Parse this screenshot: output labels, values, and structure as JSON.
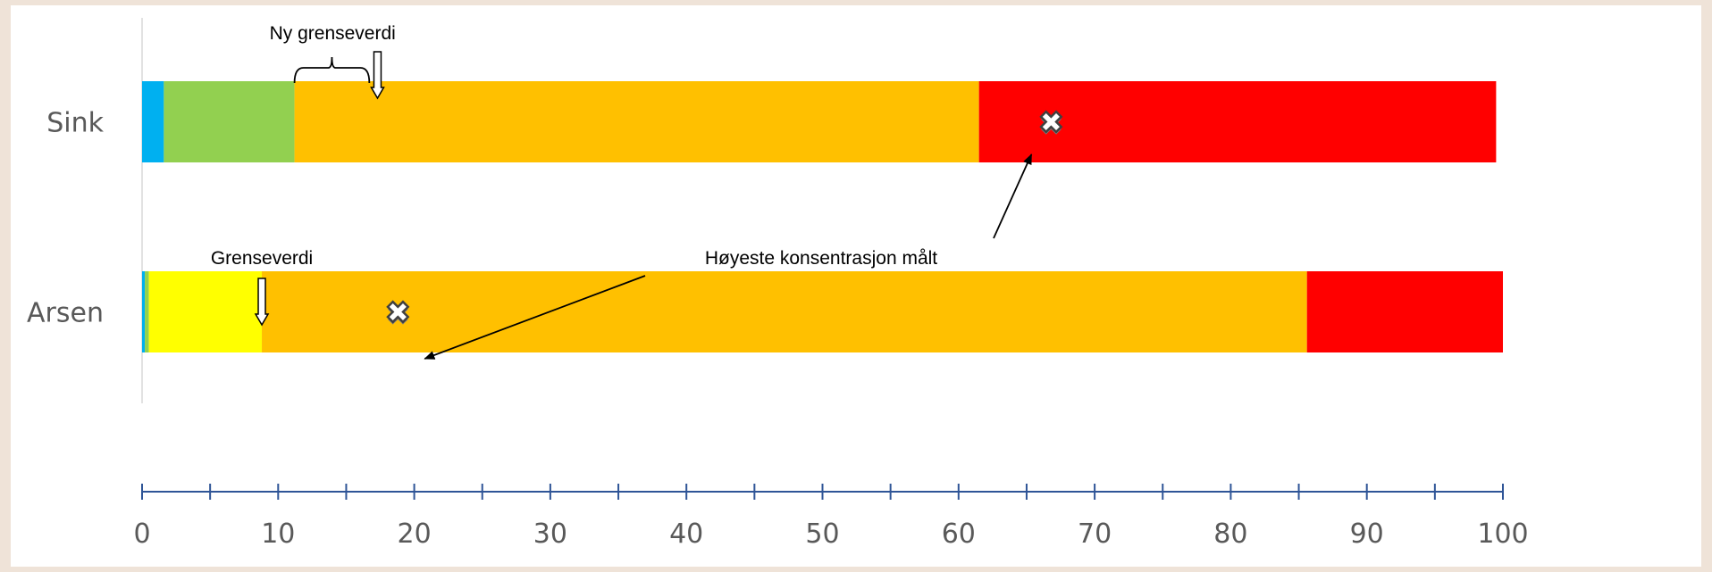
{
  "chart_data": {
    "type": "bar",
    "orientation": "horizontal-stacked",
    "categories": [
      "Sink",
      "Arsen"
    ],
    "xlim": [
      0,
      100
    ],
    "x_ticks": [
      0,
      10,
      20,
      30,
      40,
      50,
      60,
      70,
      80,
      90,
      100
    ],
    "rows": [
      {
        "label": "Sink",
        "segments": [
          {
            "from": 0,
            "to": 1.6,
            "color": "#00b0f0"
          },
          {
            "from": 1.6,
            "to": 11.2,
            "color": "#92d050"
          },
          {
            "from": 11.2,
            "to": 61.5,
            "color": "#ffc000"
          },
          {
            "from": 61.5,
            "to": 99.5,
            "color": "#ff0000"
          }
        ],
        "max_measured": 66.8
      },
      {
        "label": "Arsen",
        "segments": [
          {
            "from": 0,
            "to": 0.2,
            "color": "#00b0f0"
          },
          {
            "from": 0.2,
            "to": 0.5,
            "color": "#92d050"
          },
          {
            "from": 0.5,
            "to": 8.8,
            "color": "#ffff00"
          },
          {
            "from": 8.8,
            "to": 85.6,
            "color": "#ffc000"
          },
          {
            "from": 85.6,
            "to": 100,
            "color": "#ff0000"
          }
        ],
        "max_measured": 18.8
      }
    ],
    "annotations": {
      "new_limit_label": "Ny grenseverdi",
      "new_limit_value": 17.3,
      "new_limit_bracket": [
        11.2,
        16.7
      ],
      "limit_label": "Grenseverdi",
      "limit_value": 8.8,
      "max_label": "Høyeste konsentrasjon målt"
    },
    "grid": false
  }
}
